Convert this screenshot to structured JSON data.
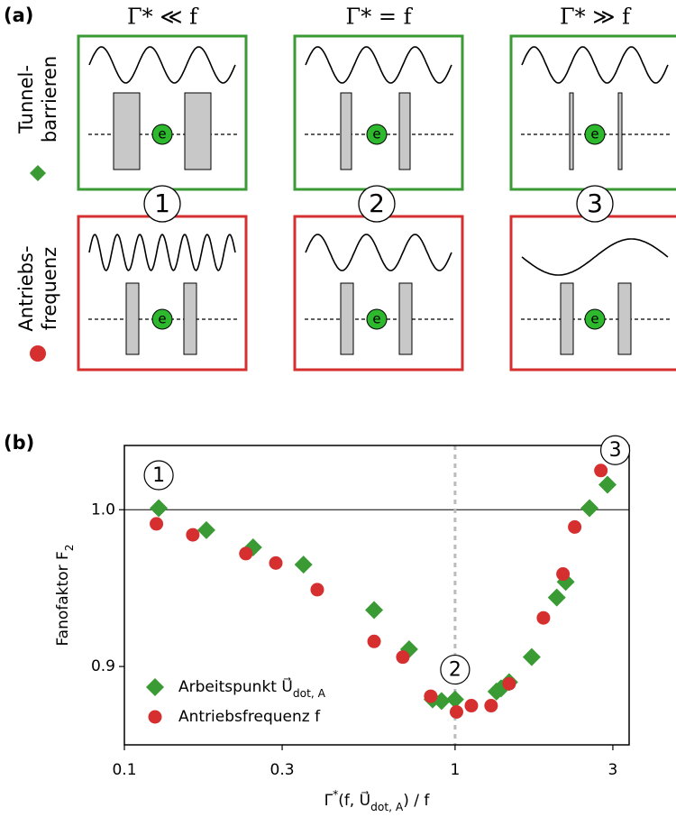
{
  "panel_a": {
    "label": "(a)",
    "headers": [
      "Γ* ≪ f",
      "Γ* = f",
      "Γ* ≫ f"
    ],
    "rows": [
      {
        "lines": [
          "Tunnel-",
          "barrieren"
        ],
        "color": "#3a9a33"
      },
      {
        "lines": [
          "Antriebs-",
          "frequenz"
        ],
        "color": "#d62f2f"
      }
    ],
    "numbers": [
      "1",
      "2",
      "3"
    ],
    "electron": "e"
  },
  "chart_data": {
    "type": "scatter",
    "label": "(b)",
    "ylabel": [
      {
        "text": "Fanofaktor F"
      },
      {
        "text": "2",
        "sub": true
      }
    ],
    "xlabel": [
      {
        "text": "Γ"
      },
      {
        "text": "*",
        "sup": true
      },
      {
        "text": "(f, U⃗"
      },
      {
        "text": "dot, A",
        "sub": true
      },
      {
        "text": ") / f"
      }
    ],
    "log_x": true,
    "xlim": [
      0.1,
      3.36
    ],
    "ylim": [
      0.85,
      1.041
    ],
    "xticks": [
      0.1,
      0.3,
      1,
      3
    ],
    "yticks": [
      0.9,
      {
        "value": 1,
        "label": "1.0"
      }
    ],
    "hline": 1,
    "vline": 1,
    "legend": "lower left",
    "annotations": [
      {
        "text": "1",
        "x": 0.127,
        "y": 1.022
      },
      {
        "text": "2",
        "x": 1,
        "y": 0.898
      },
      {
        "text": "3",
        "x": 3.05,
        "y": 1.038
      }
    ],
    "series": [
      {
        "name": [
          {
            "text": "Arbeitspunkt  U⃗"
          },
          {
            "text": "dot, A",
            "sub": true
          }
        ],
        "color": "#3a9a33",
        "marker": "diamond",
        "x": [
          0.127,
          0.177,
          0.245,
          0.348,
          0.569,
          0.726,
          0.855,
          0.91,
          1.0,
          1.334,
          1.377,
          1.457,
          1.705,
          2.03,
          2.16,
          2.55,
          2.89
        ],
        "values": [
          1.001,
          0.987,
          0.976,
          0.965,
          0.936,
          0.911,
          0.879,
          0.878,
          0.879,
          0.884,
          0.886,
          0.89,
          0.906,
          0.944,
          0.954,
          1.001,
          1.016
        ]
      },
      {
        "name": [
          {
            "text": "Antriebsfrequenz f"
          }
        ],
        "color": "#d62f2f",
        "marker": "circle",
        "x": [
          0.125,
          0.161,
          0.233,
          0.287,
          0.383,
          0.569,
          0.695,
          0.844,
          1.01,
          1.12,
          1.285,
          1.457,
          1.85,
          2.12,
          2.3,
          2.76
        ],
        "values": [
          0.991,
          0.984,
          0.972,
          0.966,
          0.949,
          0.916,
          0.906,
          0.881,
          0.871,
          0.875,
          0.875,
          0.889,
          0.931,
          0.959,
          0.989,
          1.025
        ]
      }
    ]
  }
}
